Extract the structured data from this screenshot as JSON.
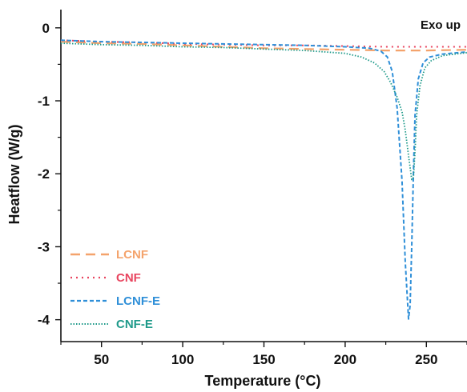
{
  "chart_data": {
    "type": "line",
    "title": "",
    "xlabel": "Temperature (°C)",
    "ylabel": "Heatflow (W/g)",
    "xlim": [
      25,
      275
    ],
    "ylim": [
      -4.3,
      0.25
    ],
    "x_ticks": [
      50,
      100,
      150,
      200,
      250
    ],
    "y_ticks": [
      0,
      -1,
      -2,
      -3,
      -4
    ],
    "grid": false,
    "legend_position": "bottom-left",
    "annotation": "Exo up",
    "series": [
      {
        "name": "LCNF",
        "color": "#F4A36C",
        "dash": "dashed-long",
        "points": [
          [
            25,
            -0.19
          ],
          [
            50,
            -0.21
          ],
          [
            75,
            -0.22
          ],
          [
            100,
            -0.24
          ],
          [
            125,
            -0.26
          ],
          [
            150,
            -0.28
          ],
          [
            175,
            -0.29
          ],
          [
            200,
            -0.3
          ],
          [
            225,
            -0.31
          ],
          [
            250,
            -0.31
          ],
          [
            275,
            -0.3
          ]
        ]
      },
      {
        "name": "CNF",
        "color": "#E8455F",
        "dash": "dotted",
        "points": [
          [
            25,
            -0.17
          ],
          [
            50,
            -0.19
          ],
          [
            75,
            -0.2
          ],
          [
            100,
            -0.22
          ],
          [
            125,
            -0.23
          ],
          [
            150,
            -0.24
          ],
          [
            175,
            -0.24
          ],
          [
            200,
            -0.25
          ],
          [
            225,
            -0.26
          ],
          [
            250,
            -0.26
          ],
          [
            275,
            -0.26
          ]
        ]
      },
      {
        "name": "LCNF-E",
        "color": "#2F8FD8",
        "dash": "dashed-short",
        "points": [
          [
            25,
            -0.17
          ],
          [
            50,
            -0.19
          ],
          [
            75,
            -0.2
          ],
          [
            100,
            -0.21
          ],
          [
            125,
            -0.22
          ],
          [
            150,
            -0.23
          ],
          [
            175,
            -0.24
          ],
          [
            200,
            -0.26
          ],
          [
            215,
            -0.28
          ],
          [
            222,
            -0.32
          ],
          [
            226,
            -0.4
          ],
          [
            229,
            -0.6
          ],
          [
            232,
            -1.1
          ],
          [
            235,
            -2.1
          ],
          [
            237,
            -3.2
          ],
          [
            239,
            -3.99
          ],
          [
            240,
            -3.8
          ],
          [
            241,
            -3.0
          ],
          [
            242,
            -2.0
          ],
          [
            243,
            -1.2
          ],
          [
            245,
            -0.7
          ],
          [
            248,
            -0.48
          ],
          [
            252,
            -0.4
          ],
          [
            260,
            -0.36
          ],
          [
            275,
            -0.33
          ]
        ]
      },
      {
        "name": "CNF-E",
        "color": "#1F9A8A",
        "dash": "dotted-fine",
        "points": [
          [
            25,
            -0.21
          ],
          [
            50,
            -0.23
          ],
          [
            75,
            -0.24
          ],
          [
            100,
            -0.26
          ],
          [
            125,
            -0.27
          ],
          [
            150,
            -0.29
          ],
          [
            175,
            -0.31
          ],
          [
            200,
            -0.35
          ],
          [
            210,
            -0.4
          ],
          [
            218,
            -0.48
          ],
          [
            224,
            -0.6
          ],
          [
            228,
            -0.75
          ],
          [
            232,
            -0.95
          ],
          [
            235,
            -1.15
          ],
          [
            237,
            -1.4
          ],
          [
            239,
            -1.75
          ],
          [
            241,
            -2.08
          ],
          [
            242,
            -2.05
          ],
          [
            243,
            -1.7
          ],
          [
            244,
            -1.2
          ],
          [
            246,
            -0.8
          ],
          [
            249,
            -0.55
          ],
          [
            253,
            -0.45
          ],
          [
            260,
            -0.38
          ],
          [
            275,
            -0.34
          ]
        ]
      }
    ]
  }
}
